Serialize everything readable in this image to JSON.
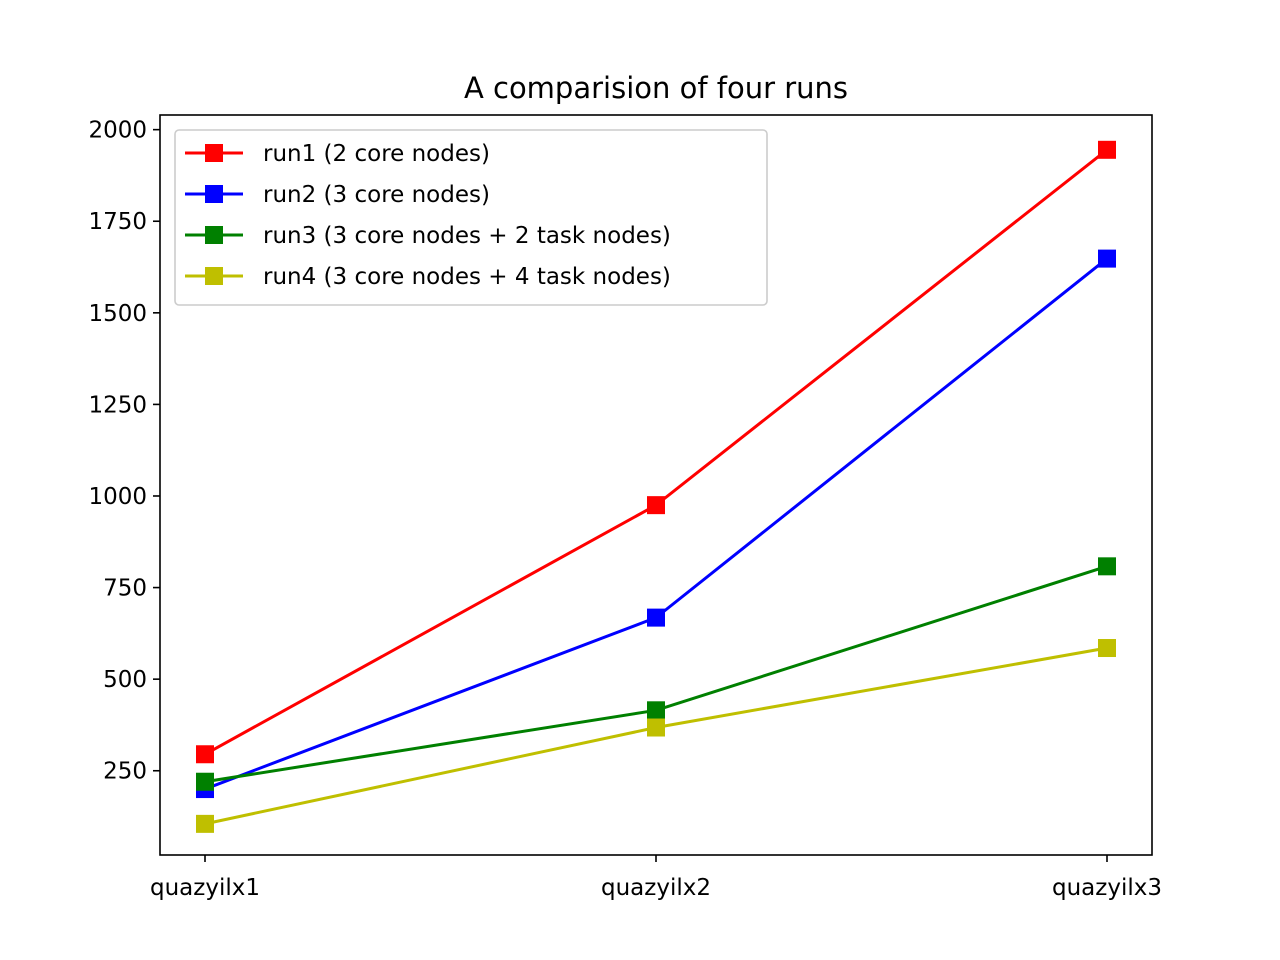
{
  "chart_data": {
    "type": "line",
    "title": "A comparision of four runs",
    "xlabel": "",
    "ylabel": "",
    "categories": [
      "quazyilx1",
      "quazyilx2",
      "quazyilx3"
    ],
    "ylim": [
      20,
      2040
    ],
    "yticks": [
      250,
      500,
      750,
      1000,
      1250,
      1500,
      1750,
      2000
    ],
    "grid": false,
    "legend_position": "top-left",
    "marker": "square",
    "series": [
      {
        "name": "run1 (2 core nodes)",
        "color": "#ff0000",
        "values": [
          295,
          975,
          1945
        ]
      },
      {
        "name": "run2 (3 core nodes)",
        "color": "#0000ff",
        "values": [
          200,
          668,
          1648
        ]
      },
      {
        "name": "run3 (3 core nodes + 2 task nodes)",
        "color": "#008000",
        "values": [
          220,
          415,
          808
        ]
      },
      {
        "name": "run4 (3 core nodes + 4 task nodes)",
        "color": "#bfbf00",
        "values": [
          105,
          368,
          585
        ]
      }
    ]
  }
}
